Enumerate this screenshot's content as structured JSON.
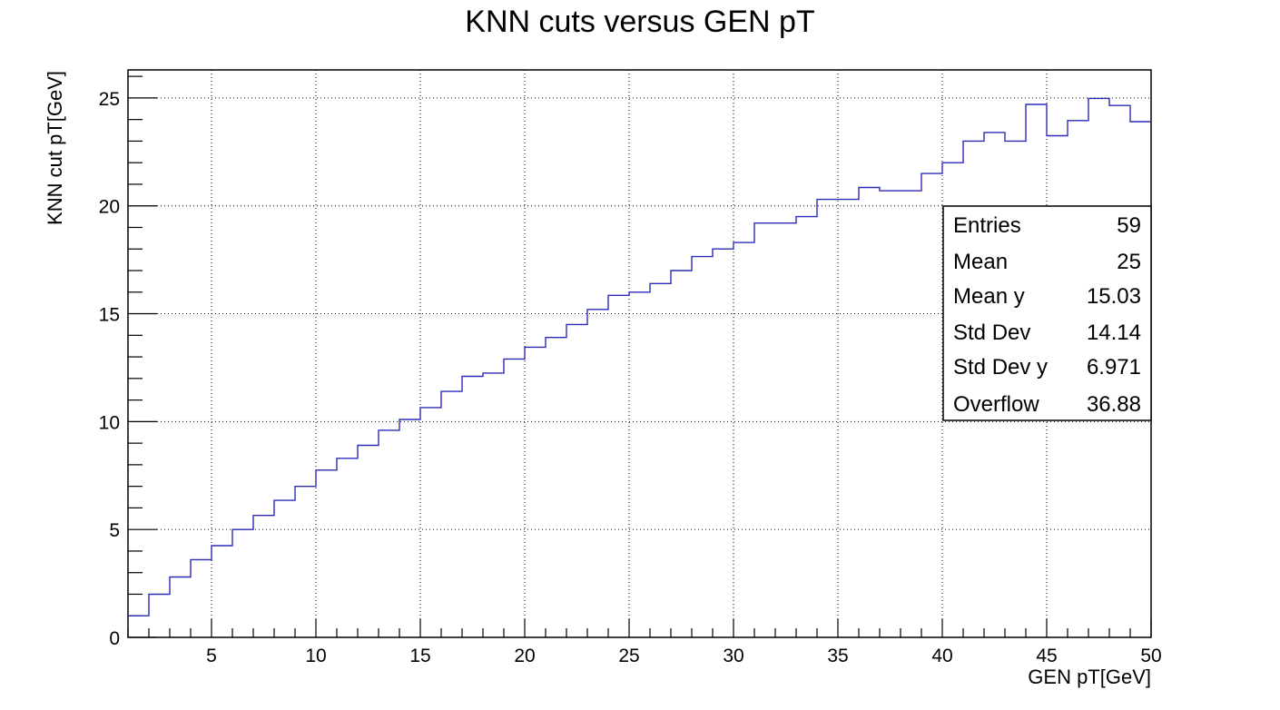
{
  "chart_data": {
    "type": "line",
    "style": "step-histogram",
    "title": "KNN cuts versus GEN pT",
    "xlabel": "GEN pT[GeV]",
    "ylabel": "KNN cut pT[GeV]",
    "xlim": [
      1,
      50
    ],
    "ylim": [
      0,
      26.3
    ],
    "x_ticks": [
      5,
      10,
      15,
      20,
      25,
      30,
      35,
      40,
      45,
      50
    ],
    "y_ticks": [
      0,
      5,
      10,
      15,
      20,
      25
    ],
    "grid": true,
    "line_color": "#2b2bb8",
    "bin_edges": [
      1,
      2,
      3,
      4,
      5,
      6,
      7,
      8,
      9,
      10,
      11,
      12,
      13,
      14,
      15,
      16,
      17,
      18,
      19,
      20,
      21,
      22,
      23,
      24,
      25,
      26,
      27,
      28,
      29,
      30,
      31,
      32,
      33,
      34,
      35,
      36,
      37,
      38,
      39,
      40,
      41,
      42,
      43,
      44,
      45,
      46,
      47,
      48,
      49,
      50
    ],
    "values": [
      1.0,
      2.0,
      2.8,
      3.6,
      4.25,
      5.0,
      5.65,
      6.35,
      7.0,
      7.75,
      8.3,
      8.9,
      9.6,
      10.1,
      10.65,
      11.4,
      12.1,
      12.25,
      12.9,
      13.45,
      13.9,
      14.5,
      15.2,
      15.85,
      16.0,
      16.4,
      17.0,
      17.65,
      18.0,
      18.3,
      19.2,
      19.2,
      19.5,
      20.3,
      20.3,
      20.85,
      20.7,
      20.7,
      21.5,
      22.0,
      23.0,
      23.4,
      23.0,
      24.7,
      23.25,
      23.95,
      24.98,
      24.65,
      23.9
    ],
    "legend": [
      {
        "label": "Entries",
        "value": "59"
      },
      {
        "label": "Mean",
        "value": "25"
      },
      {
        "label": "Mean y",
        "value": "15.03"
      },
      {
        "label": "Std Dev",
        "value": "14.14"
      },
      {
        "label": "Std Dev y",
        "value": "6.971"
      },
      {
        "label": "Overflow",
        "value": "36.88"
      }
    ],
    "legend_position": "right"
  }
}
